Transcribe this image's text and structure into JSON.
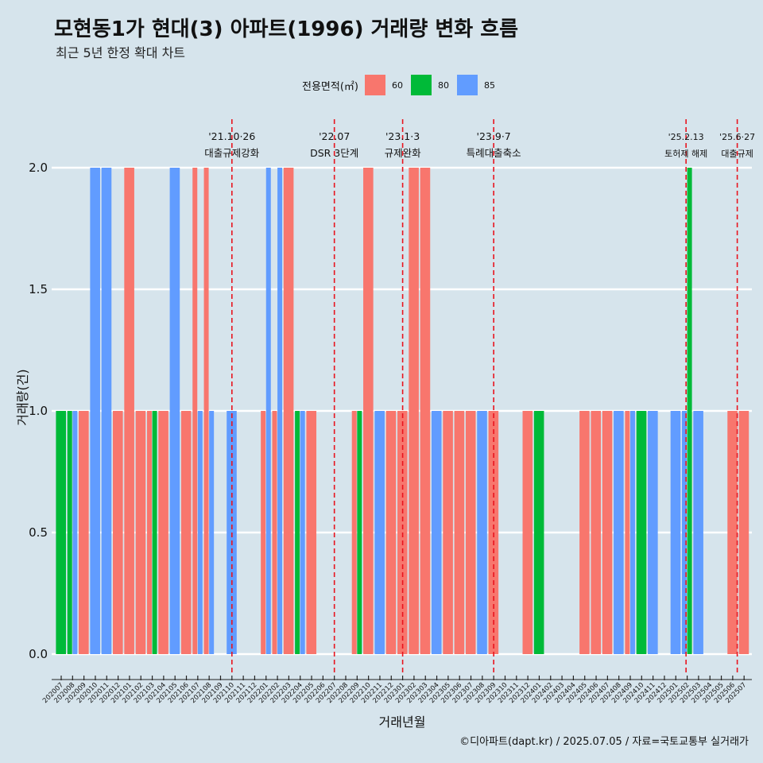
{
  "title": "모현동1가 현대(3) 아파트(1996) 거래량 변화 흐름",
  "subtitle": "최근 5년 한정 확대 차트",
  "caption": "©디아파트(dapt.kr) / 2025.07.05 / 자료=국토교통부 실거래가",
  "colors": {
    "60": "#f8766d",
    "80": "#00ba38",
    "85": "#619cff",
    "marker": "#e8141e",
    "grid": "#ffffff",
    "bg": "#d6e4ec"
  },
  "chart_data": {
    "type": "bar",
    "xlabel": "거래년월",
    "ylabel": "거래량(건)",
    "ylim": [
      0,
      2
    ],
    "yticks": [
      "0.0",
      "0.5",
      "1.0",
      "1.5",
      "2.0"
    ],
    "legend": {
      "title": "전용면적(㎡)",
      "placement": "top",
      "entries": [
        "60",
        "80",
        "85"
      ]
    },
    "categories": [
      "202007",
      "202008",
      "202009",
      "202010",
      "202011",
      "202012",
      "202101",
      "202102",
      "202103",
      "202104",
      "202105",
      "202106",
      "202107",
      "202108",
      "202109",
      "202110",
      "202111",
      "202112",
      "202201",
      "202202",
      "202203",
      "202204",
      "202205",
      "202206",
      "202207",
      "202208",
      "202209",
      "202210",
      "202211",
      "202212",
      "202301",
      "202302",
      "202303",
      "202304",
      "202305",
      "202306",
      "202307",
      "202308",
      "202309",
      "202310",
      "202311",
      "202312",
      "202401",
      "202402",
      "202403",
      "202404",
      "202405",
      "202406",
      "202407",
      "202408",
      "202409",
      "202410",
      "202411",
      "202412",
      "202501",
      "202502",
      "202503",
      "202504",
      "202505",
      "202506",
      "202507"
    ],
    "month_labels": [
      "202007",
      "202008",
      "202009",
      "202010",
      "202011",
      "202012",
      "202101",
      "202102",
      "202103",
      "202104",
      "202105",
      "202106",
      "202107",
      "202108",
      "202109",
      "202110",
      "202111",
      "202112",
      "202201",
      "202202",
      "202203",
      "202204",
      "202205",
      "202206",
      "202207",
      "202208",
      "202209",
      "202210",
      "202211",
      "202212",
      "202301",
      "202302",
      "202303",
      "202304",
      "202305",
      "202306",
      "202307",
      "202308",
      "202309",
      "202310",
      "202311",
      "202312",
      "202401",
      "202402",
      "202403",
      "202404",
      "202405",
      "202406",
      "202407",
      "202408",
      "202409",
      "202410",
      "202411",
      "202412",
      "202501",
      "202502",
      "202503",
      "202504",
      "202505",
      "202506",
      "202507"
    ],
    "bars": [
      {
        "i": 0,
        "size": "80",
        "value": 1,
        "sub": 0,
        "of": 1
      },
      {
        "i": 1,
        "size": "80",
        "value": 1,
        "sub": 0,
        "of": 2
      },
      {
        "i": 1,
        "size": "85",
        "value": 1,
        "sub": 1,
        "of": 2
      },
      {
        "i": 2,
        "size": "60",
        "value": 1,
        "sub": 0,
        "of": 1
      },
      {
        "i": 3,
        "size": "85",
        "value": 2,
        "sub": 0,
        "of": 1
      },
      {
        "i": 4,
        "size": "85",
        "value": 2,
        "sub": 0,
        "of": 1
      },
      {
        "i": 5,
        "size": "60",
        "value": 1,
        "sub": 0,
        "of": 1
      },
      {
        "i": 6,
        "size": "60",
        "value": 2,
        "sub": 0,
        "of": 1
      },
      {
        "i": 7,
        "size": "60",
        "value": 1,
        "sub": 0,
        "of": 1
      },
      {
        "i": 8,
        "size": "60",
        "value": 1,
        "sub": 0,
        "of": 2
      },
      {
        "i": 8,
        "size": "80",
        "value": 1,
        "sub": 1,
        "of": 2
      },
      {
        "i": 9,
        "size": "60",
        "value": 1,
        "sub": 0,
        "of": 1
      },
      {
        "i": 10,
        "size": "85",
        "value": 2,
        "sub": 0,
        "of": 1
      },
      {
        "i": 11,
        "size": "60",
        "value": 1,
        "sub": 0,
        "of": 1
      },
      {
        "i": 12,
        "size": "60",
        "value": 2,
        "sub": 0,
        "of": 2
      },
      {
        "i": 12,
        "size": "85",
        "value": 1,
        "sub": 1,
        "of": 2
      },
      {
        "i": 13,
        "size": "60",
        "value": 2,
        "sub": 0,
        "of": 2
      },
      {
        "i": 13,
        "size": "85",
        "value": 1,
        "sub": 1,
        "of": 2
      },
      {
        "i": 15,
        "size": "85",
        "value": 1,
        "sub": 0,
        "of": 1
      },
      {
        "i": 18,
        "size": "60",
        "value": 1,
        "sub": 0,
        "of": 2
      },
      {
        "i": 18,
        "size": "85",
        "value": 2,
        "sub": 1,
        "of": 2
      },
      {
        "i": 19,
        "size": "60",
        "value": 1,
        "sub": 0,
        "of": 2
      },
      {
        "i": 19,
        "size": "85",
        "value": 2,
        "sub": 1,
        "of": 2
      },
      {
        "i": 20,
        "size": "60",
        "value": 2,
        "sub": 0,
        "of": 1
      },
      {
        "i": 21,
        "size": "80",
        "value": 1,
        "sub": 0,
        "of": 2
      },
      {
        "i": 21,
        "size": "85",
        "value": 1,
        "sub": 1,
        "of": 2
      },
      {
        "i": 22,
        "size": "60",
        "value": 1,
        "sub": 0,
        "of": 1
      },
      {
        "i": 26,
        "size": "60",
        "value": 1,
        "sub": 0,
        "of": 2
      },
      {
        "i": 26,
        "size": "80",
        "value": 1,
        "sub": 1,
        "of": 2
      },
      {
        "i": 27,
        "size": "60",
        "value": 2,
        "sub": 0,
        "of": 1
      },
      {
        "i": 28,
        "size": "85",
        "value": 1,
        "sub": 0,
        "of": 1
      },
      {
        "i": 29,
        "size": "60",
        "value": 1,
        "sub": 0,
        "of": 1
      },
      {
        "i": 30,
        "size": "60",
        "value": 1,
        "sub": 0,
        "of": 1
      },
      {
        "i": 31,
        "size": "60",
        "value": 2,
        "sub": 0,
        "of": 1
      },
      {
        "i": 32,
        "size": "60",
        "value": 2,
        "sub": 0,
        "of": 1
      },
      {
        "i": 33,
        "size": "85",
        "value": 1,
        "sub": 0,
        "of": 1
      },
      {
        "i": 34,
        "size": "60",
        "value": 1,
        "sub": 0,
        "of": 1
      },
      {
        "i": 35,
        "size": "60",
        "value": 1,
        "sub": 0,
        "of": 1
      },
      {
        "i": 36,
        "size": "60",
        "value": 1,
        "sub": 0,
        "of": 1
      },
      {
        "i": 37,
        "size": "85",
        "value": 1,
        "sub": 0,
        "of": 1
      },
      {
        "i": 38,
        "size": "60",
        "value": 1,
        "sub": 0,
        "of": 1
      },
      {
        "i": 41,
        "size": "60",
        "value": 1,
        "sub": 0,
        "of": 1
      },
      {
        "i": 42,
        "size": "80",
        "value": 1,
        "sub": 0,
        "of": 1
      },
      {
        "i": 46,
        "size": "60",
        "value": 1,
        "sub": 0,
        "of": 1
      },
      {
        "i": 47,
        "size": "60",
        "value": 1,
        "sub": 0,
        "of": 1
      },
      {
        "i": 48,
        "size": "60",
        "value": 1,
        "sub": 0,
        "of": 1
      },
      {
        "i": 49,
        "size": "85",
        "value": 1,
        "sub": 0,
        "of": 1
      },
      {
        "i": 50,
        "size": "60",
        "value": 1,
        "sub": 0,
        "of": 2
      },
      {
        "i": 50,
        "size": "85",
        "value": 1,
        "sub": 1,
        "of": 2
      },
      {
        "i": 51,
        "size": "80",
        "value": 1,
        "sub": 0,
        "of": 1
      },
      {
        "i": 52,
        "size": "85",
        "value": 1,
        "sub": 0,
        "of": 1
      },
      {
        "i": 54,
        "size": "85",
        "value": 1,
        "sub": 0,
        "of": 1
      },
      {
        "i": 55,
        "size": "85",
        "value": 1,
        "sub": 0,
        "of": 2
      },
      {
        "i": 55,
        "size": "80",
        "value": 2,
        "sub": 1,
        "of": 2
      },
      {
        "i": 56,
        "size": "85",
        "value": 1,
        "sub": 0,
        "of": 1
      },
      {
        "i": 59,
        "size": "60",
        "value": 1,
        "sub": 0,
        "of": 1
      },
      {
        "i": 60,
        "size": "60",
        "value": 1,
        "sub": 0,
        "of": 1
      }
    ],
    "annotations": [
      {
        "pos": 15.0,
        "date": "'21.10·26",
        "label": "대출규제강화"
      },
      {
        "pos": 24.0,
        "date": "'22.07",
        "label": "DSR 3단계"
      },
      {
        "pos": 30.0,
        "date": "'23.1·3",
        "label": "규제완화"
      },
      {
        "pos": 38.0,
        "date": "'23.9·7",
        "label": "특례대출축소"
      },
      {
        "pos": 54.9,
        "date": "'25.2.13",
        "label": "토허제 해제"
      },
      {
        "pos": 59.4,
        "date": "'25.6·27",
        "label": "대출규제"
      }
    ]
  }
}
